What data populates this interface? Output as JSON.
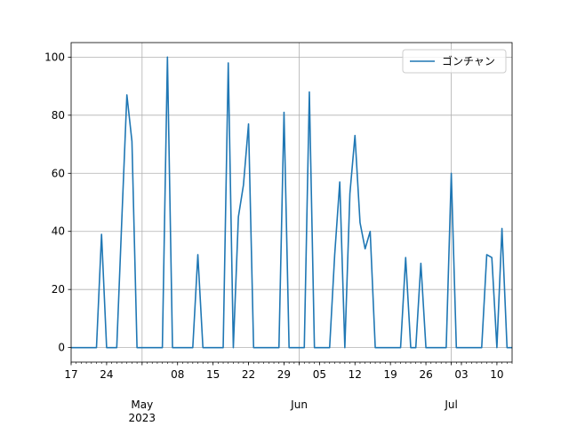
{
  "chart_data": {
    "type": "line",
    "title": "",
    "xlabel": "",
    "ylabel": "",
    "x_start": "2023-04-17",
    "xlim": [
      "2023-04-17",
      "2023-07-13"
    ],
    "ylim": [
      -5,
      105
    ],
    "grid": true,
    "legend_position": "upper right",
    "series": [
      {
        "name": "ゴンチャン",
        "color": "#1f77b4",
        "points": [
          [
            "2023-04-17",
            0
          ],
          [
            "2023-04-22",
            0
          ],
          [
            "2023-04-23",
            39
          ],
          [
            "2023-04-24",
            0
          ],
          [
            "2023-04-26",
            0
          ],
          [
            "2023-04-27",
            44
          ],
          [
            "2023-04-28",
            87
          ],
          [
            "2023-04-29",
            71
          ],
          [
            "2023-04-30",
            0
          ],
          [
            "2023-05-05",
            0
          ],
          [
            "2023-05-06",
            100
          ],
          [
            "2023-05-07",
            0
          ],
          [
            "2023-05-11",
            0
          ],
          [
            "2023-05-12",
            32
          ],
          [
            "2023-05-13",
            0
          ],
          [
            "2023-05-17",
            0
          ],
          [
            "2023-05-18",
            98
          ],
          [
            "2023-05-19",
            0
          ],
          [
            "2023-05-20",
            45
          ],
          [
            "2023-05-21",
            56
          ],
          [
            "2023-05-22",
            77
          ],
          [
            "2023-05-23",
            0
          ],
          [
            "2023-05-28",
            0
          ],
          [
            "2023-05-29",
            81
          ],
          [
            "2023-05-30",
            0
          ],
          [
            "2023-06-02",
            0
          ],
          [
            "2023-06-03",
            88
          ],
          [
            "2023-06-04",
            0
          ],
          [
            "2023-06-07",
            0
          ],
          [
            "2023-06-08",
            32
          ],
          [
            "2023-06-09",
            57
          ],
          [
            "2023-06-10",
            0
          ],
          [
            "2023-06-11",
            53
          ],
          [
            "2023-06-12",
            73
          ],
          [
            "2023-06-13",
            43
          ],
          [
            "2023-06-14",
            34
          ],
          [
            "2023-06-15",
            40
          ],
          [
            "2023-06-16",
            0
          ],
          [
            "2023-06-21",
            0
          ],
          [
            "2023-06-22",
            31
          ],
          [
            "2023-06-23",
            0
          ],
          [
            "2023-06-24",
            0
          ],
          [
            "2023-06-25",
            29
          ],
          [
            "2023-06-26",
            0
          ],
          [
            "2023-06-30",
            0
          ],
          [
            "2023-07-01",
            60
          ],
          [
            "2023-07-02",
            0
          ],
          [
            "2023-07-07",
            0
          ],
          [
            "2023-07-08",
            32
          ],
          [
            "2023-07-09",
            31
          ],
          [
            "2023-07-10",
            0
          ],
          [
            "2023-07-11",
            41
          ],
          [
            "2023-07-12",
            0
          ],
          [
            "2023-07-13",
            0
          ]
        ]
      }
    ],
    "y_ticks": [
      0,
      20,
      40,
      60,
      80,
      100
    ],
    "x_major_ticks": [
      {
        "date": "2023-05-01",
        "label": "May\n2023"
      },
      {
        "date": "2023-06-01",
        "label": "Jun"
      },
      {
        "date": "2023-07-01",
        "label": "Jul"
      }
    ],
    "x_minor_ticks": [
      {
        "date": "2023-04-17",
        "label": "17"
      },
      {
        "date": "2023-04-24",
        "label": "24"
      },
      {
        "date": "2023-05-08",
        "label": "08"
      },
      {
        "date": "2023-05-15",
        "label": "15"
      },
      {
        "date": "2023-05-22",
        "label": "22"
      },
      {
        "date": "2023-05-29",
        "label": "29"
      },
      {
        "date": "2023-06-05",
        "label": "05"
      },
      {
        "date": "2023-06-12",
        "label": "12"
      },
      {
        "date": "2023-06-19",
        "label": "19"
      },
      {
        "date": "2023-06-26",
        "label": "26"
      },
      {
        "date": "2023-07-03",
        "label": "03"
      },
      {
        "date": "2023-07-10",
        "label": "10"
      }
    ]
  }
}
